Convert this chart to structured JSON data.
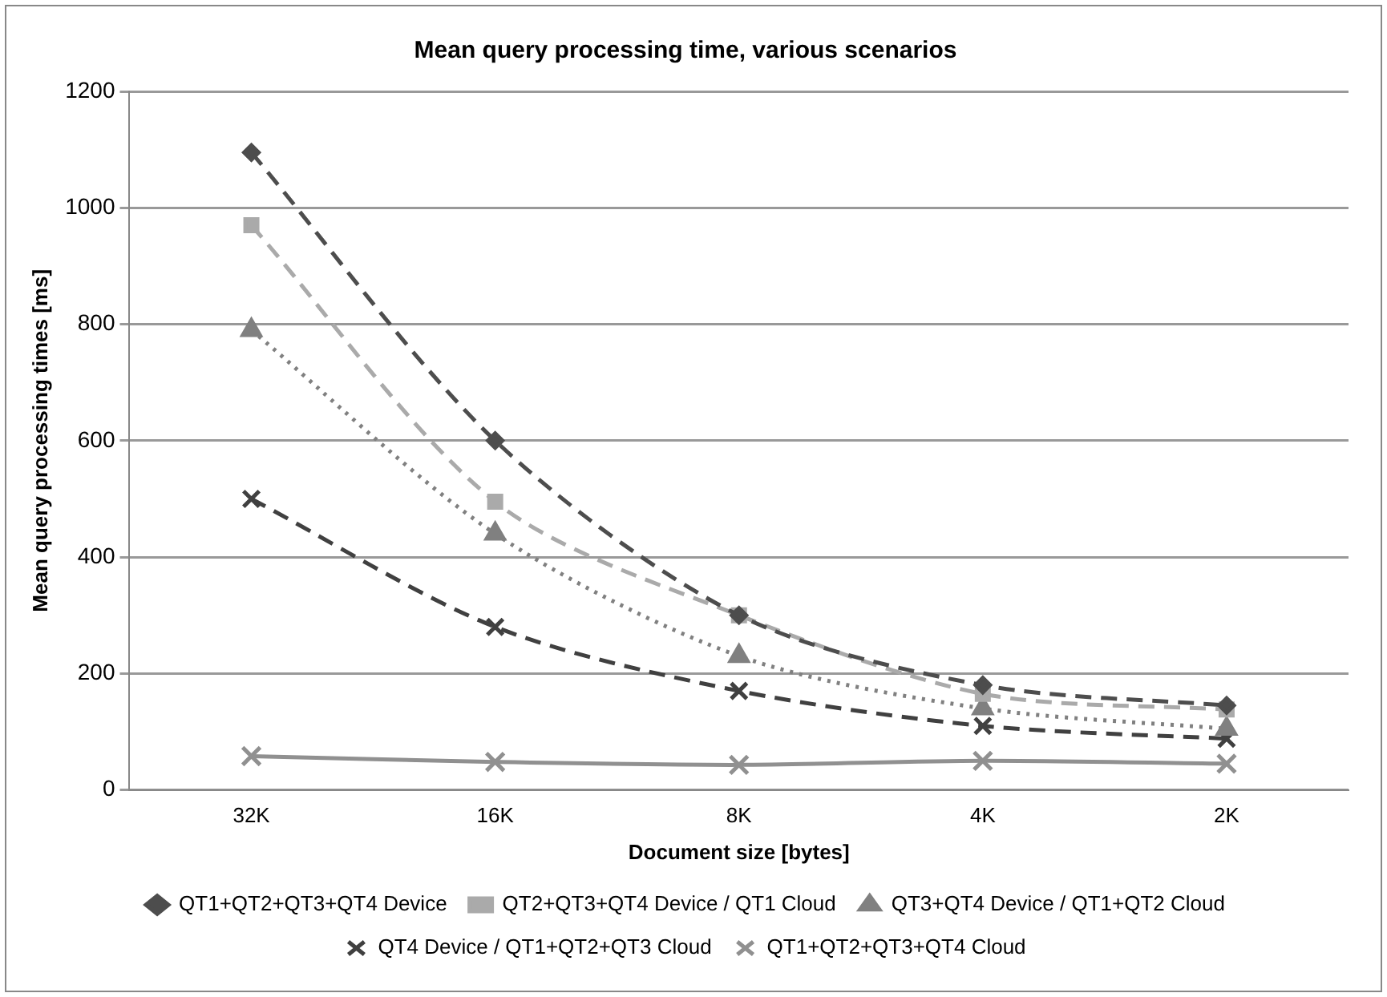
{
  "chart_data": {
    "type": "line",
    "title": "Mean query processing time, various scenarios",
    "xlabel": "Document size [bytes]",
    "ylabel": "Mean query processing times [ms]",
    "categories": [
      "32K",
      "16K",
      "8K",
      "4K",
      "2K"
    ],
    "series": [
      {
        "name": "QT1+QT2+QT3+QT4 Device",
        "color": "#4d4d4d",
        "marker": "diamond",
        "line_style": "dashed",
        "values": [
          1095,
          600,
          300,
          180,
          145
        ]
      },
      {
        "name": "QT2+QT3+QT4 Device / QT1 Cloud",
        "color": "#aaaaaa",
        "marker": "square",
        "line_style": "dashed",
        "values": [
          970,
          495,
          300,
          165,
          138
        ]
      },
      {
        "name": "QT3+QT4 Device / QT1+QT2 Cloud",
        "color": "#808080",
        "marker": "triangle",
        "line_style": "dotted",
        "values": [
          790,
          440,
          230,
          140,
          105
        ]
      },
      {
        "name": "QT4 Device / QT1+QT2+QT3 Cloud",
        "color": "#404040",
        "marker": "cross",
        "line_style": "dashed",
        "values": [
          500,
          280,
          170,
          110,
          88
        ]
      },
      {
        "name": "QT1+QT2+QT3+QT4 Cloud",
        "color": "#909090",
        "marker": "cross",
        "line_style": "solid",
        "values": [
          58,
          48,
          43,
          50,
          45
        ]
      }
    ],
    "ylim": [
      0,
      1200
    ],
    "yticks": [
      0,
      200,
      400,
      600,
      800,
      1000,
      1200
    ],
    "grid": "y",
    "legend": "bottom"
  }
}
